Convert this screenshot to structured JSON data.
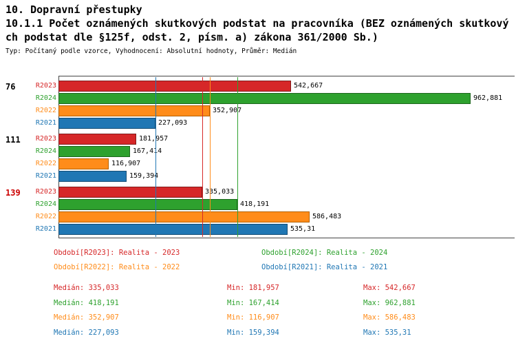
{
  "header": {
    "title": "10. Dopravní přestupky",
    "subtitle_line1": "10.1.1 Počet oznámených skutkových podstat na pracovníka (BEZ oznámených skutkový",
    "subtitle_line2": "ch podstat dle §125f, odst. 2, písm. a) zákona 361/2000 Sb.)",
    "meta": "Typ: Počítaný podle vzorce, Vyhodnocení: Absolutní hodnoty, Průměr: Medián"
  },
  "chart_data": {
    "type": "bar",
    "orientation": "horizontal",
    "grid": false,
    "xlim": [
      0,
      1065
    ],
    "series_order": [
      "R2023",
      "R2024",
      "R2022",
      "R2021"
    ],
    "series_colors": {
      "R2023": {
        "fill": "#d62728",
        "edge": "#7f1a1a"
      },
      "R2024": {
        "fill": "#2ea12e",
        "edge": "#1d671d"
      },
      "R2022": {
        "fill": "#ff8c1a",
        "edge": "#b35f00"
      },
      "R2021": {
        "fill": "#2077b4",
        "edge": "#144d75"
      }
    },
    "groups": [
      {
        "label": "76",
        "label_color": "#000000",
        "bars": [
          {
            "series": "R2023",
            "value": 542.667,
            "value_label": "542,667"
          },
          {
            "series": "R2024",
            "value": 962.881,
            "value_label": "962,881"
          },
          {
            "series": "R2022",
            "value": 352.907,
            "value_label": "352,907"
          },
          {
            "series": "R2021",
            "value": 227.093,
            "value_label": "227,093"
          }
        ]
      },
      {
        "label": "111",
        "label_color": "#000000",
        "bars": [
          {
            "series": "R2023",
            "value": 181.957,
            "value_label": "181,957"
          },
          {
            "series": "R2024",
            "value": 167.414,
            "value_label": "167,414"
          },
          {
            "series": "R2022",
            "value": 116.907,
            "value_label": "116,907"
          },
          {
            "series": "R2021",
            "value": 159.394,
            "value_label": "159,394"
          }
        ]
      },
      {
        "label": "139",
        "label_color": "#cc0000",
        "bars": [
          {
            "series": "R2023",
            "value": 335.033,
            "value_label": "335,033"
          },
          {
            "series": "R2024",
            "value": 418.191,
            "value_label": "418,191"
          },
          {
            "series": "R2022",
            "value": 586.483,
            "value_label": "586,483"
          },
          {
            "series": "R2021",
            "value": 535.31,
            "value_label": "535,31"
          }
        ]
      }
    ],
    "median_lines": [
      {
        "series": "R2023",
        "value": 335.033
      },
      {
        "series": "R2024",
        "value": 418.191
      },
      {
        "series": "R2022",
        "value": 352.907
      },
      {
        "series": "R2021",
        "value": 227.093
      }
    ]
  },
  "legend": {
    "items": [
      {
        "text": "Období[R2023]: Realita - 2023",
        "color": "#d62728"
      },
      {
        "text": "Období[R2024]: Realita - 2024",
        "color": "#2ea12e"
      },
      {
        "text": "Období[R2022]: Realita - 2022",
        "color": "#ff8c1a"
      },
      {
        "text": "Období[R2021]: Realita - 2021",
        "color": "#2077b4"
      }
    ]
  },
  "stats": {
    "rows": [
      {
        "median": "Medián: 335,033",
        "min": "Min: 181,957",
        "max": "Max: 542,667",
        "color": "#d62728"
      },
      {
        "median": "Medián: 418,191",
        "min": "Min: 167,414",
        "max": "Max: 962,881",
        "color": "#2ea12e"
      },
      {
        "median": "Medián: 352,907",
        "min": "Min: 116,907",
        "max": "Max: 586,483",
        "color": "#ff8c1a"
      },
      {
        "median": "Medián: 227,093",
        "min": "Min: 159,394",
        "max": "Max: 535,31",
        "color": "#2077b4"
      }
    ]
  }
}
